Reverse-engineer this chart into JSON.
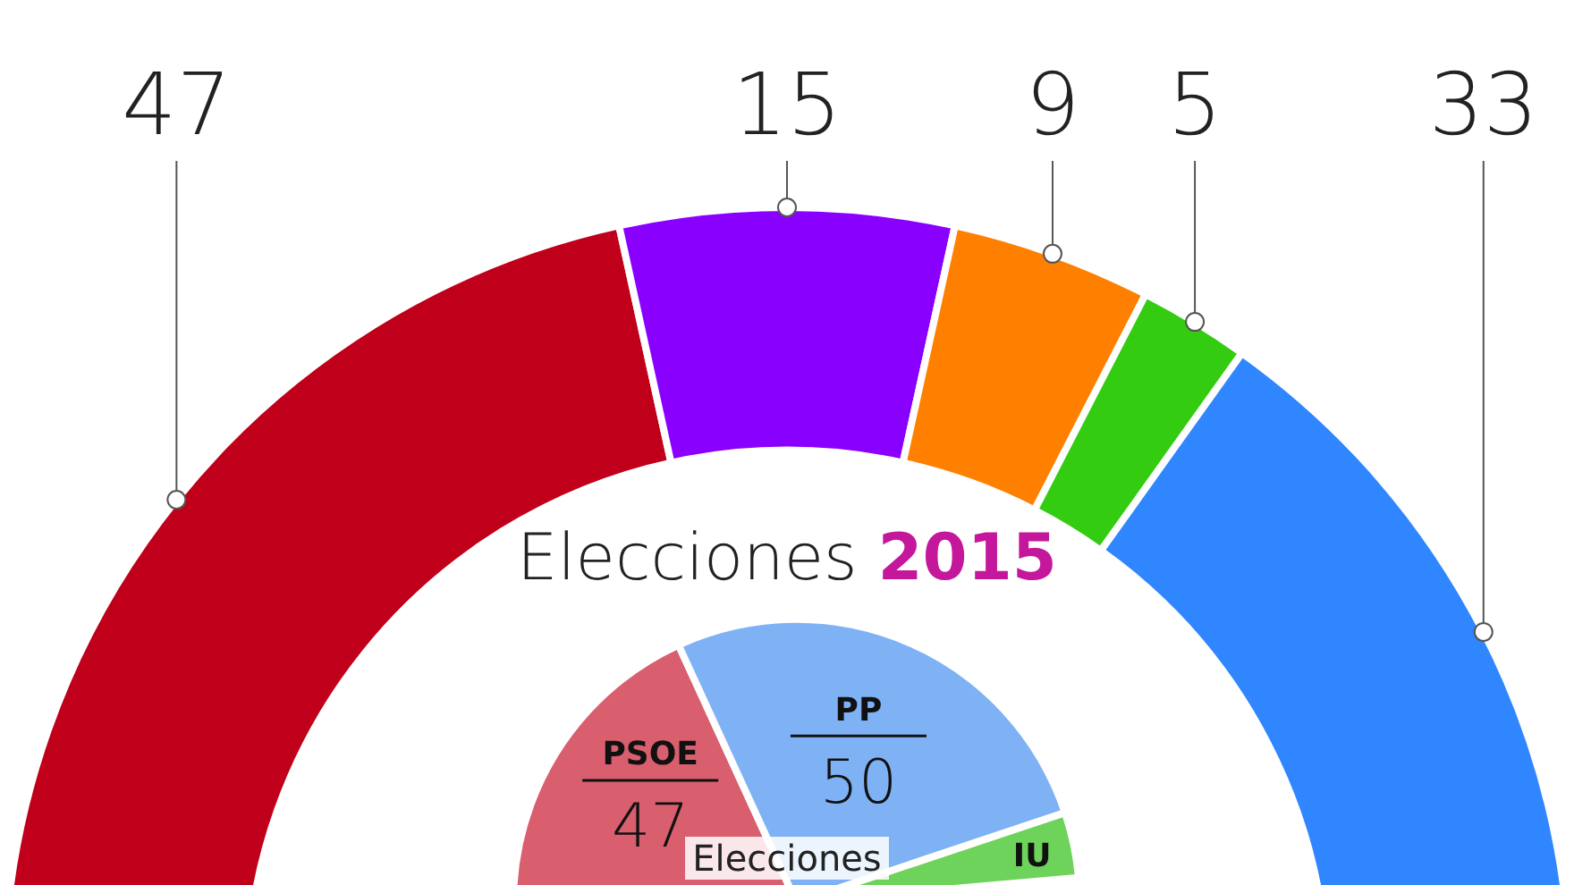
{
  "chart_data": [
    {
      "type": "donut",
      "categories": [
        null,
        null,
        null,
        null,
        null
      ],
      "values": [
        47,
        15,
        9,
        5,
        33
      ],
      "colors": [
        "#c0001a",
        "#8a00ff",
        "#ff8000",
        "#33cc11",
        "#2f86ff"
      ],
      "data_labels": true
    },
    {
      "type": "pie",
      "title": "Elecciones 2015",
      "categories": [
        "PSOE",
        "PP",
        "IU"
      ],
      "values": [
        47,
        50,
        7
      ],
      "colors": [
        "#d95f6e",
        "#7fb2f5",
        "#6dd35a"
      ],
      "value_labels": [
        "47",
        "50",
        null
      ],
      "annotations": [
        "Elecciones"
      ]
    }
  ]
}
